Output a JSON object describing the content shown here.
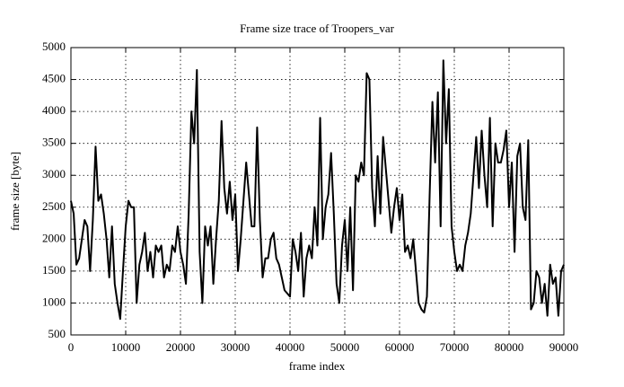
{
  "chart_data": {
    "type": "line",
    "title": "Frame size trace of Troopers_var",
    "x_label": "frame index",
    "y_label": "frame size [byte]",
    "grid": true,
    "xlim": [
      0,
      90000
    ],
    "xticks": [
      0,
      10000,
      20000,
      30000,
      40000,
      50000,
      60000,
      70000,
      80000,
      90000
    ],
    "ylim": [
      500,
      5000
    ],
    "yticks": [
      500,
      1000,
      1500,
      2000,
      2500,
      3000,
      3500,
      4000,
      4500,
      5000
    ],
    "x": [
      0,
      500,
      1000,
      1500,
      2000,
      2500,
      3000,
      3500,
      4000,
      4500,
      5000,
      5500,
      6000,
      6500,
      7000,
      7500,
      8000,
      8500,
      9000,
      9500,
      10000,
      10500,
      11000,
      11500,
      12000,
      12500,
      13000,
      13500,
      14000,
      14500,
      15000,
      15500,
      16000,
      16500,
      17000,
      17500,
      18000,
      18500,
      19000,
      19500,
      20000,
      20500,
      21000,
      21500,
      22000,
      22500,
      23000,
      23500,
      24000,
      24500,
      25000,
      25500,
      26000,
      26500,
      27000,
      27500,
      28000,
      28500,
      29000,
      29500,
      30000,
      30500,
      31000,
      31500,
      32000,
      32500,
      33000,
      33500,
      34000,
      34500,
      35000,
      35500,
      36000,
      36500,
      37000,
      37500,
      38000,
      38500,
      39000,
      39500,
      40000,
      40500,
      41000,
      41500,
      42000,
      42500,
      43000,
      43500,
      44000,
      44500,
      45000,
      45500,
      46000,
      46500,
      47000,
      47500,
      48000,
      48500,
      49000,
      49500,
      50000,
      50500,
      51000,
      51500,
      52000,
      52500,
      53000,
      53500,
      54000,
      54500,
      55000,
      55500,
      56000,
      56500,
      57000,
      57500,
      58000,
      58500,
      59000,
      59500,
      60000,
      60500,
      61000,
      61500,
      62000,
      62500,
      63000,
      63500,
      64000,
      64500,
      65000,
      65500,
      66000,
      66500,
      67000,
      67500,
      68000,
      68500,
      69000,
      69500,
      70000,
      70500,
      71000,
      71500,
      72000,
      72500,
      73000,
      73500,
      74000,
      74500,
      75000,
      75500,
      76000,
      76500,
      77000,
      77500,
      78000,
      78500,
      79000,
      79500,
      80000,
      80500,
      81000,
      81500,
      82000,
      82500,
      83000,
      83500,
      84000,
      84500,
      85000,
      85500,
      86000,
      86500,
      87000,
      87500,
      88000,
      88500,
      89000,
      89500,
      90000
    ],
    "series": [
      {
        "color": "#000000",
        "values": [
          2600,
          2400,
          1600,
          1700,
          2000,
          2300,
          2200,
          1500,
          2300,
          3450,
          2600,
          2700,
          2400,
          2000,
          1400,
          2200,
          1300,
          1000,
          750,
          1500,
          2200,
          2600,
          2500,
          2500,
          1000,
          1600,
          1800,
          2100,
          1500,
          1800,
          1400,
          1900,
          1800,
          1900,
          1400,
          1600,
          1500,
          1900,
          1800,
          2200,
          1800,
          1600,
          1300,
          2400,
          4000,
          3500,
          4650,
          1800,
          1000,
          2200,
          1900,
          2200,
          1300,
          2000,
          2600,
          3850,
          2800,
          2400,
          2900,
          2300,
          2700,
          1500,
          2000,
          2600,
          3200,
          2700,
          2200,
          2200,
          3750,
          2300,
          1400,
          1700,
          1700,
          2000,
          2100,
          1700,
          1600,
          1400,
          1200,
          1150,
          1100,
          2000,
          1800,
          1500,
          2100,
          1100,
          1700,
          1900,
          1700,
          2500,
          1900,
          3900,
          2000,
          2500,
          2700,
          3350,
          2400,
          1300,
          1000,
          1900,
          2300,
          1500,
          2500,
          1200,
          3000,
          2900,
          3200,
          3000,
          4600,
          4500,
          2800,
          2200,
          3300,
          2400,
          3600,
          3100,
          2600,
          2100,
          2500,
          2800,
          2300,
          2700,
          1800,
          1900,
          1700,
          2000,
          1500,
          1000,
          900,
          850,
          1100,
          2700,
          4150,
          3200,
          4300,
          2200,
          4800,
          3500,
          4350,
          2200,
          1800,
          1500,
          1600,
          1500,
          1900,
          2100,
          2400,
          3000,
          3600,
          2800,
          3700,
          3000,
          2500,
          3900,
          2200,
          3500,
          3200,
          3200,
          3400,
          3700,
          2500,
          3200,
          1800,
          3300,
          3500,
          2500,
          2300,
          3550,
          900,
          1000,
          1500,
          1400,
          1000,
          1300,
          800,
          1600,
          1300,
          1400,
          800,
          1500,
          1600
        ]
      }
    ]
  }
}
